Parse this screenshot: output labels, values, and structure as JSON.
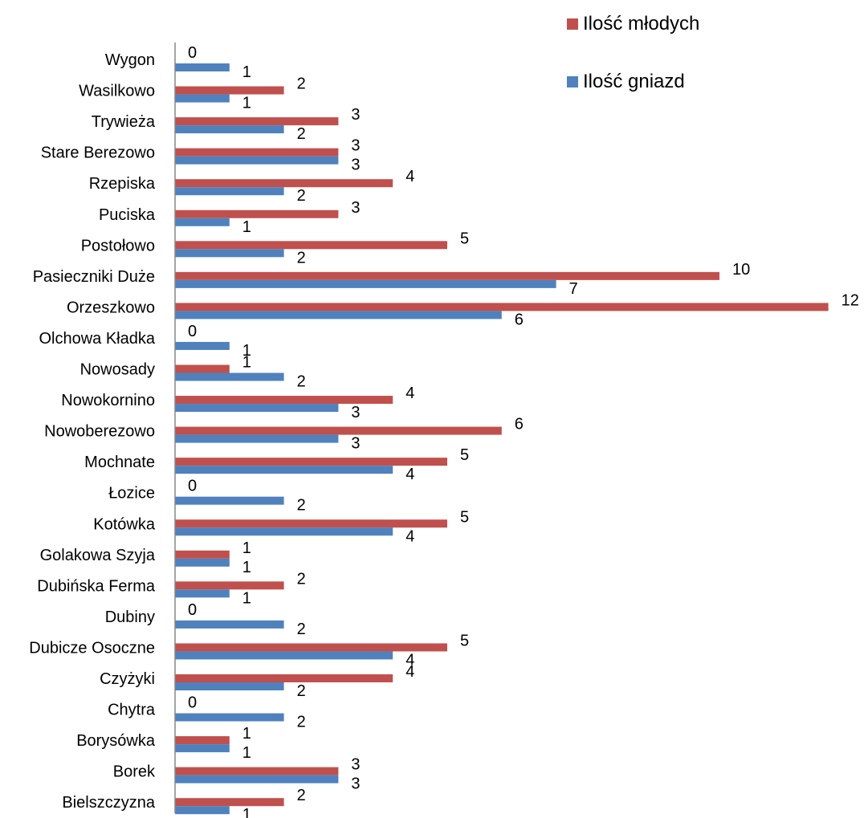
{
  "chart_data": {
    "type": "bar",
    "orientation": "horizontal",
    "categories": [
      "Wygon",
      "Wasilkowo",
      "Trywieża",
      "Stare Berezowo",
      "Rzepiska",
      "Puciska",
      "Postołowo",
      "Pasieczniki Duże",
      "Orzeszkowo",
      "Olchowa Kładka",
      "Nowosady",
      "Nowokornino",
      "Nowoberezowo",
      "Mochnate",
      "Łozice",
      "Kotówka",
      "Golakowa Szyja",
      "Dubińska Ferma",
      "Dubiny",
      "Dubicze Osoczne",
      "Czyżyki",
      "Chytra",
      "Borysówka",
      "Borek",
      "Bielszczyzna"
    ],
    "series": [
      {
        "name": "Ilość młodych",
        "color": "#C0504D",
        "values": [
          0,
          2,
          3,
          3,
          4,
          3,
          5,
          10,
          12,
          0,
          1,
          4,
          6,
          5,
          0,
          5,
          1,
          2,
          0,
          5,
          4,
          0,
          1,
          3,
          2
        ]
      },
      {
        "name": "Ilość gniazd",
        "color": "#4F81BD",
        "values": [
          1,
          1,
          2,
          3,
          2,
          1,
          2,
          7,
          6,
          1,
          2,
          3,
          3,
          4,
          2,
          4,
          1,
          1,
          2,
          4,
          2,
          2,
          1,
          3,
          1
        ]
      }
    ],
    "xlim": [
      0,
      12
    ],
    "grid": false,
    "data_labels": true,
    "legend_position": "top-right"
  }
}
